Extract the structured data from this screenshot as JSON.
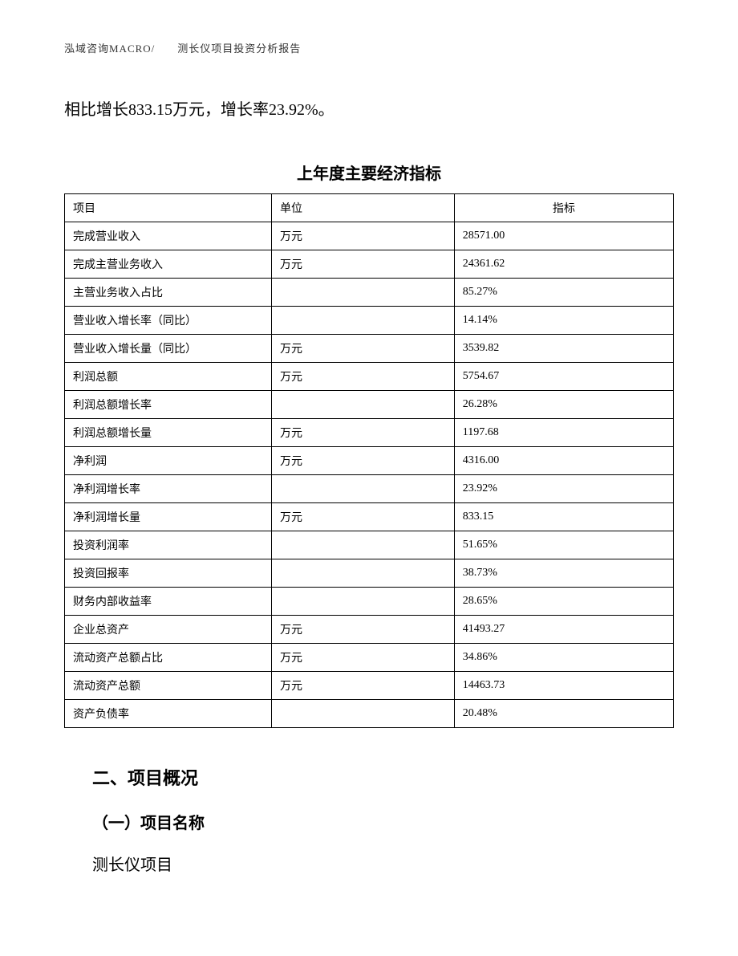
{
  "header": {
    "text": "泓域咨询MACRO/　　测长仪项目投资分析报告"
  },
  "body_text": "相比增长833.15万元，增长率23.92%。",
  "table": {
    "title": "上年度主要经济指标",
    "columns": [
      "项目",
      "单位",
      "指标"
    ],
    "rows": [
      [
        "完成营业收入",
        "万元",
        "28571.00"
      ],
      [
        "完成主营业务收入",
        "万元",
        "24361.62"
      ],
      [
        "主营业务收入占比",
        "",
        "85.27%"
      ],
      [
        "营业收入增长率（同比）",
        "",
        "14.14%"
      ],
      [
        "营业收入增长量（同比）",
        "万元",
        "3539.82"
      ],
      [
        "利润总额",
        "万元",
        "5754.67"
      ],
      [
        "利润总额增长率",
        "",
        "26.28%"
      ],
      [
        "利润总额增长量",
        "万元",
        "1197.68"
      ],
      [
        "净利润",
        "万元",
        "4316.00"
      ],
      [
        "净利润增长率",
        "",
        "23.92%"
      ],
      [
        "净利润增长量",
        "万元",
        "833.15"
      ],
      [
        "投资利润率",
        "",
        "51.65%"
      ],
      [
        "投资回报率",
        "",
        "38.73%"
      ],
      [
        "财务内部收益率",
        "",
        "28.65%"
      ],
      [
        "企业总资产",
        "万元",
        "41493.27"
      ],
      [
        "流动资产总额占比",
        "万元",
        "34.86%"
      ],
      [
        "流动资产总额",
        "万元",
        "14463.73"
      ],
      [
        "资产负债率",
        "",
        "20.48%"
      ]
    ]
  },
  "section": {
    "heading": "二、项目概况",
    "subheading": "（一）项目名称",
    "body": "测长仪项目"
  }
}
